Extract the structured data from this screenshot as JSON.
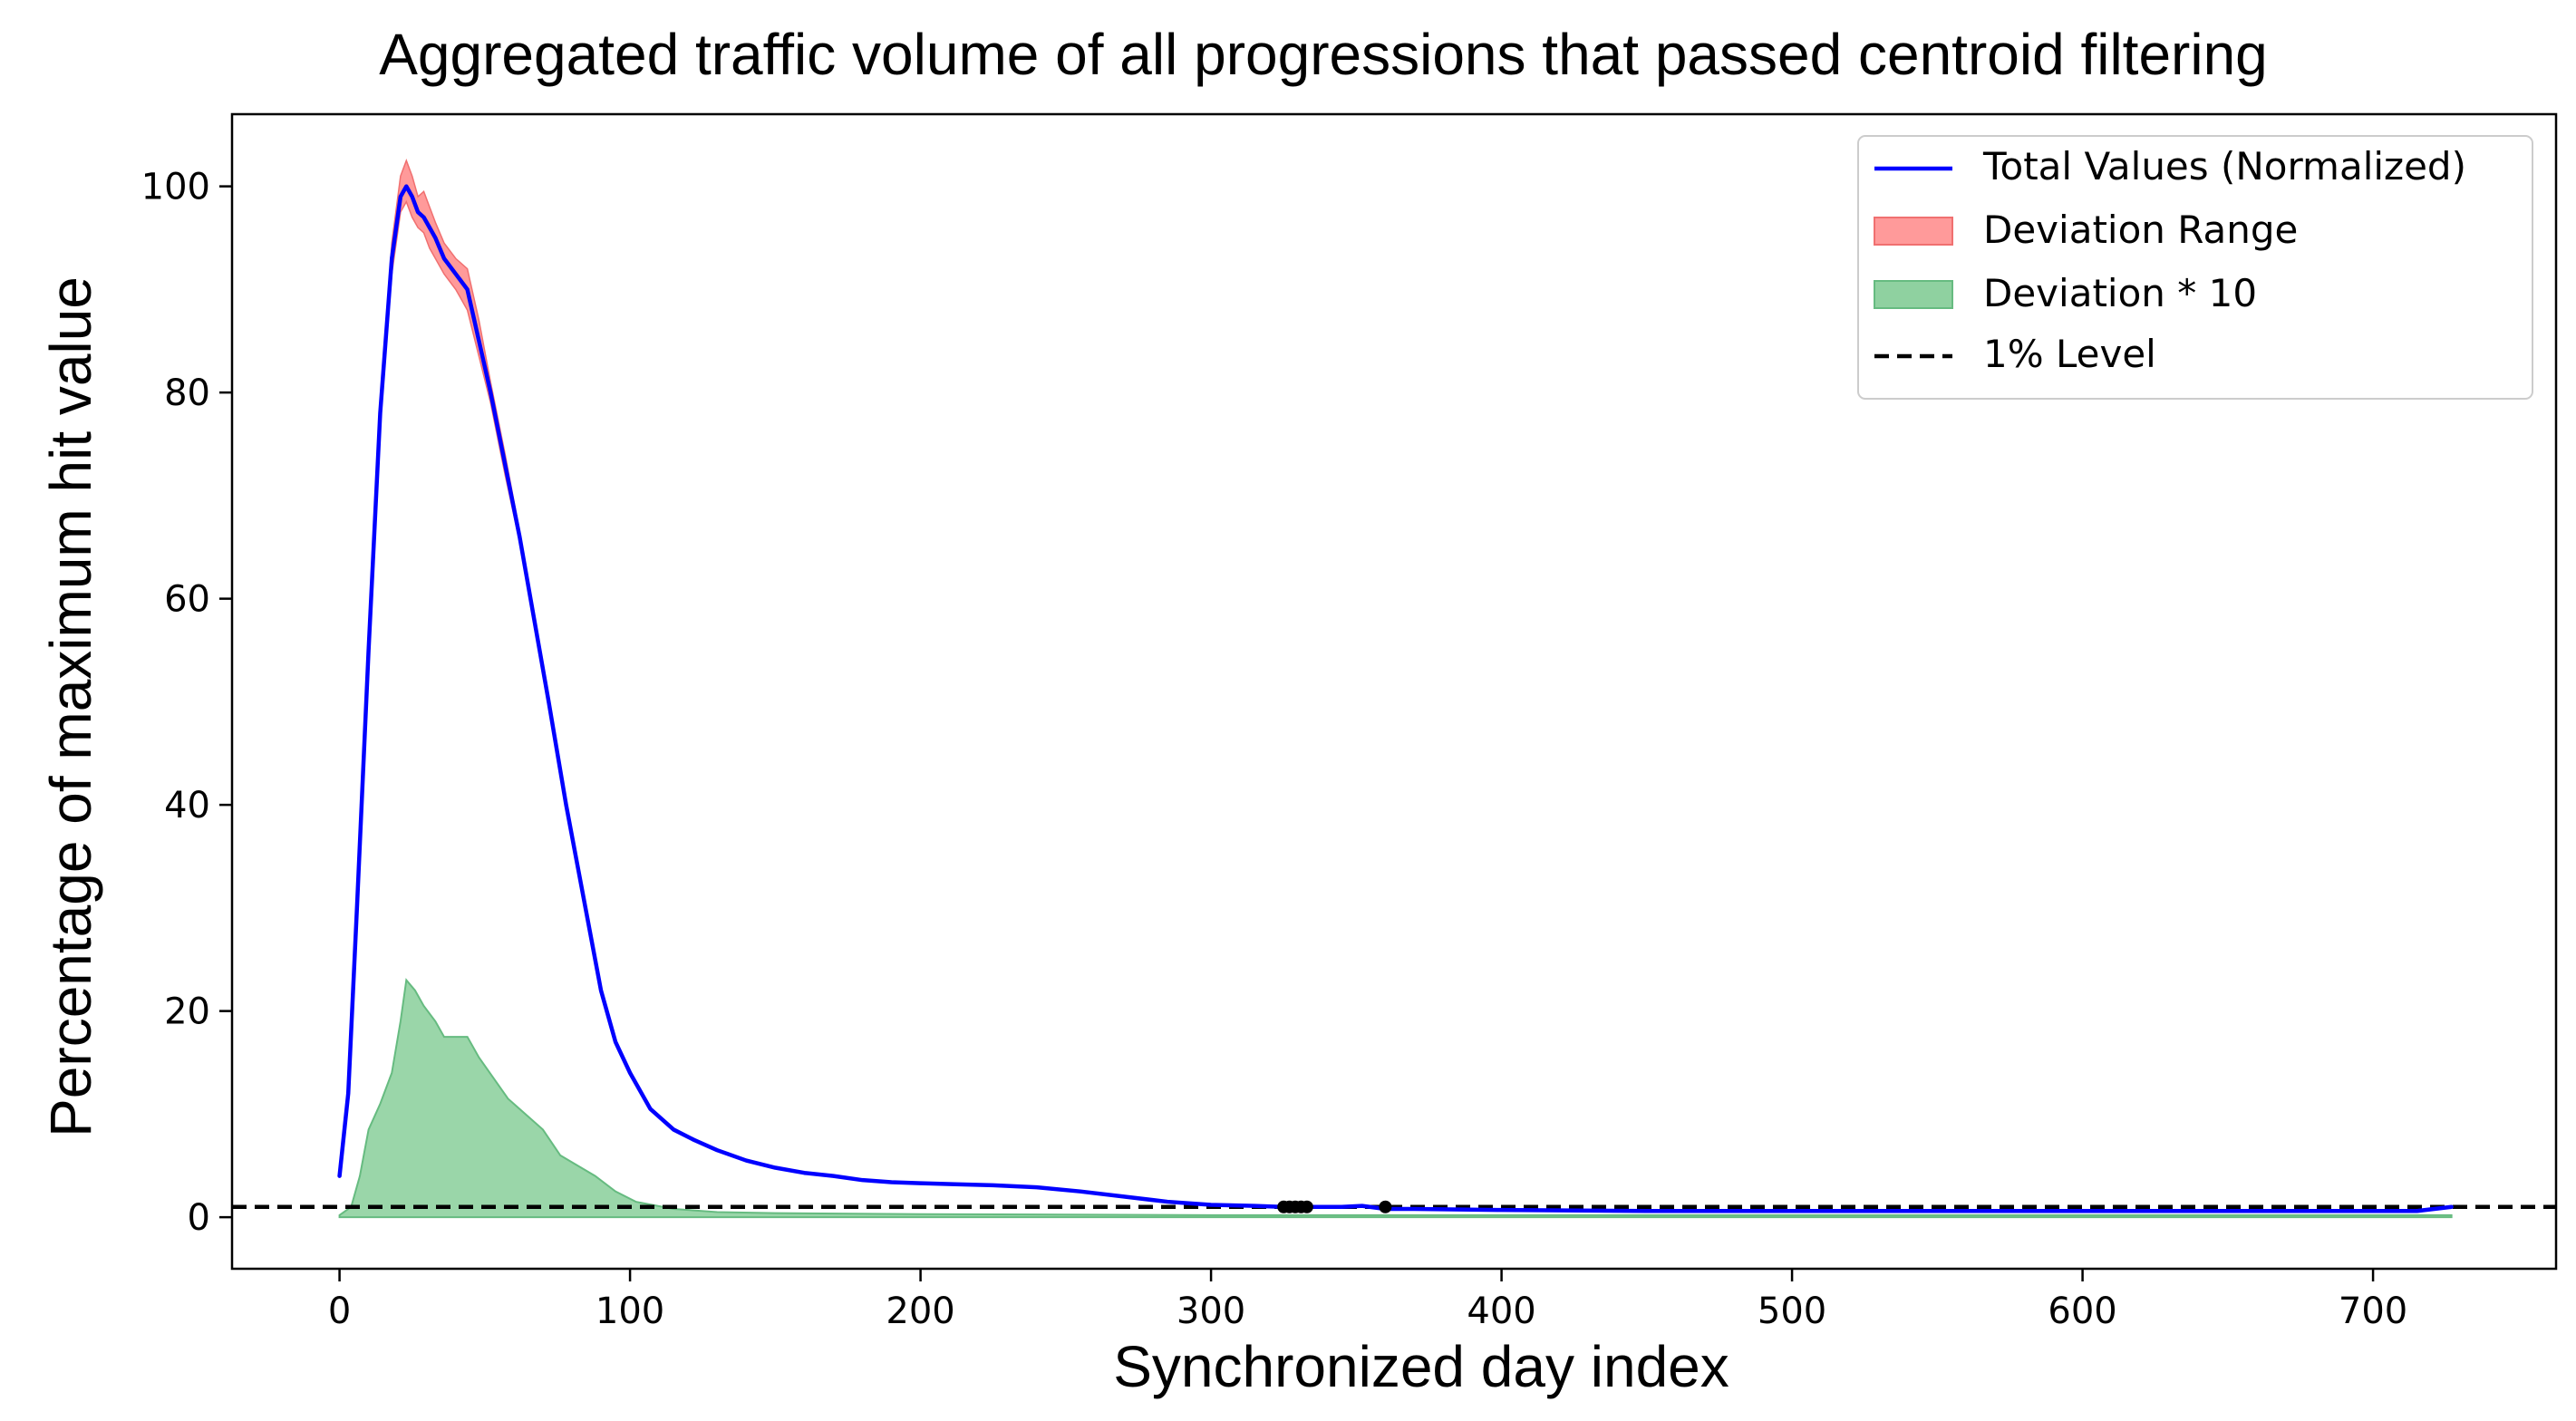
{
  "chart_data": {
    "type": "line",
    "title": "Aggregated traffic volume of all progressions that passed centroid filtering",
    "xlabel": "Synchronized day index",
    "ylabel": "Percentage of maximum hit value",
    "xlim": [
      -37,
      763
    ],
    "ylim": [
      -5,
      107
    ],
    "xticks": [
      0,
      100,
      200,
      300,
      400,
      500,
      600,
      700
    ],
    "yticks": [
      0,
      20,
      40,
      60,
      80,
      100
    ],
    "grid": false,
    "legend_position": "top-right",
    "legend": [
      {
        "key": "total",
        "label": "Total Values (Normalized)"
      },
      {
        "key": "range",
        "label": "Deviation Range"
      },
      {
        "key": "dev10",
        "label": "Deviation * 10"
      },
      {
        "key": "level",
        "label": "1% Level"
      }
    ],
    "colors": {
      "total": "#0000ff",
      "range": "#ff9a9a",
      "range_edge": "#f07070",
      "dev10": "#8fd1a0",
      "dev10_edge": "#66bb80",
      "level": "#000000",
      "marker": "#000000"
    },
    "one_percent_level": 1,
    "series": [
      {
        "name": "Total Values (Normalized)",
        "x": [
          0,
          3,
          6,
          10,
          14,
          18,
          21,
          23,
          25,
          27,
          29,
          31,
          33,
          36,
          40,
          44,
          48,
          52,
          57,
          62,
          67,
          72,
          78,
          84,
          90,
          95,
          100,
          107,
          115,
          122,
          130,
          140,
          150,
          160,
          170,
          180,
          190,
          200,
          212,
          225,
          240,
          255,
          270,
          285,
          300,
          315,
          325,
          335,
          345,
          352,
          360,
          370,
          400,
          450,
          500,
          550,
          600,
          650,
          700,
          715,
          727
        ],
        "values": [
          4.0,
          12.0,
          30.0,
          55.0,
          78.0,
          93.0,
          99.0,
          100.0,
          99.0,
          97.5,
          97.0,
          96.0,
          95.0,
          93.0,
          91.5,
          90.0,
          85.0,
          80.0,
          73.0,
          66.0,
          58.0,
          50.0,
          40.0,
          31.0,
          22.0,
          17.0,
          14.0,
          10.5,
          8.5,
          7.5,
          6.5,
          5.5,
          4.8,
          4.3,
          4.0,
          3.6,
          3.4,
          3.3,
          3.2,
          3.1,
          2.9,
          2.5,
          2.0,
          1.5,
          1.2,
          1.1,
          1.0,
          1.0,
          1.0,
          1.1,
          0.8,
          0.8,
          0.7,
          0.6,
          0.6,
          0.6,
          0.6,
          0.6,
          0.6,
          0.6,
          1.0
        ]
      },
      {
        "name": "Deviation Range",
        "x": [
          14,
          18,
          21,
          23,
          25,
          27,
          29,
          31,
          33,
          36,
          40,
          44,
          48,
          52,
          57,
          62,
          67
        ],
        "upper": [
          79.0,
          94.5,
          101.0,
          102.5,
          101.0,
          99.0,
          99.5,
          98.0,
          96.5,
          94.5,
          93.0,
          92.0,
          87.0,
          81.0,
          74.0,
          66.5,
          58.5
        ],
        "lower": [
          77.0,
          91.5,
          97.5,
          98.5,
          97.0,
          96.0,
          95.5,
          94.0,
          93.0,
          91.5,
          90.0,
          88.0,
          83.5,
          79.0,
          72.0,
          65.5,
          57.5
        ]
      },
      {
        "name": "Deviation * 10",
        "x": [
          0,
          4,
          7,
          10,
          14,
          18,
          21,
          23,
          26,
          29,
          33,
          36,
          40,
          44,
          48,
          53,
          58,
          64,
          70,
          76,
          82,
          88,
          95,
          102,
          115,
          130,
          150,
          200,
          300,
          400,
          500,
          600,
          700,
          727
        ],
        "values": [
          0.2,
          1.0,
          4.0,
          8.5,
          11.0,
          14.0,
          19.0,
          23.0,
          22.0,
          20.5,
          19.0,
          17.5,
          17.5,
          17.5,
          15.5,
          13.5,
          11.5,
          10.0,
          8.5,
          6.0,
          5.0,
          4.0,
          2.5,
          1.5,
          0.8,
          0.5,
          0.4,
          0.3,
          0.2,
          0.2,
          0.2,
          0.2,
          0.2,
          0.2
        ]
      }
    ],
    "markers": {
      "x": [
        325,
        327,
        329,
        331,
        333,
        360
      ],
      "y": [
        1.0,
        1.0,
        1.0,
        1.0,
        1.0,
        1.0
      ]
    }
  }
}
